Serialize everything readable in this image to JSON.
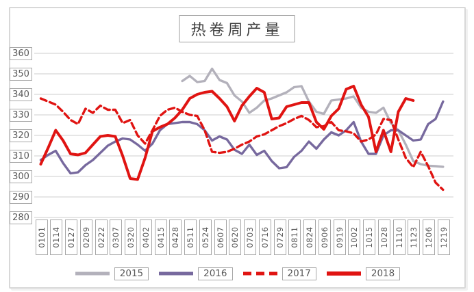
{
  "chart_data": {
    "type": "line",
    "title": "热卷周产量",
    "grid": true,
    "legend_position": "bottom",
    "y_axis": {
      "min": 280,
      "max": 360,
      "step": 10,
      "tick_labels": [
        "360",
        "350",
        "340",
        "330",
        "320",
        "310",
        "300",
        "290",
        "280"
      ]
    },
    "x_axis": {
      "points_per_label": 2,
      "tick_labels": [
        "0101",
        "0114",
        "0127",
        "0209",
        "0222",
        "0307",
        "0320",
        "0402",
        "0415",
        "0428",
        "0511",
        "0524",
        "0607",
        "0620",
        "0703",
        "0716",
        "0729",
        "0811",
        "0824",
        "0906",
        "0919",
        "1002",
        "1015",
        "1028",
        "1110",
        "1123",
        "1206",
        "1219"
      ]
    },
    "series": [
      {
        "name": "2015",
        "color": "#b3b1bb",
        "style": "solid",
        "start_index": 19,
        "values": [
          346.5,
          349,
          346,
          346.5,
          352.5,
          347,
          345.5,
          339.5,
          336.5,
          331,
          333.5,
          337,
          338,
          339.5,
          341,
          343.5,
          344,
          336.5,
          331.5,
          330.5,
          337,
          337.5,
          338,
          339,
          333.5,
          331.5,
          331,
          333.5,
          326,
          322.5,
          315.5,
          307.5,
          306,
          305.2,
          305,
          304.7
        ]
      },
      {
        "name": "2016",
        "color": "#77699e",
        "style": "solid",
        "start_index": 0,
        "values": [
          308,
          310.5,
          312.5,
          306.5,
          301.5,
          302,
          305.5,
          308,
          311.5,
          315,
          317,
          318.5,
          318,
          315.5,
          312.5,
          316,
          322.5,
          325.5,
          326,
          326.5,
          326.5,
          325.5,
          322.5,
          317.5,
          319.5,
          318,
          313,
          311,
          315.5,
          310.5,
          312.5,
          307.5,
          304,
          304.5,
          309.5,
          312.5,
          317,
          313.5,
          318,
          321.5,
          320,
          322.5,
          326.5,
          317,
          311,
          311,
          320,
          322.5,
          322.5,
          320,
          317.5,
          318,
          325.5,
          328,
          336.5
        ]
      },
      {
        "name": "2017",
        "color": "#e01412",
        "style": "dashed",
        "start_index": 0,
        "values": [
          338,
          336.5,
          335,
          331.5,
          327.5,
          325.5,
          333,
          331,
          334.5,
          332.5,
          332.5,
          326,
          327.5,
          320,
          316,
          322.5,
          329.5,
          332.5,
          333.5,
          331.5,
          330,
          329.5,
          322.5,
          312,
          311.5,
          312,
          313.5,
          315.5,
          317,
          319.5,
          320.5,
          322.5,
          324.5,
          326,
          328,
          329.5,
          327.5,
          324,
          324.5,
          326.5,
          322.5,
          322,
          321,
          317,
          318,
          320.5,
          328,
          327.5,
          318,
          309,
          304.5,
          312,
          305,
          297,
          293.5
        ]
      },
      {
        "name": "2018",
        "color": "#e01412",
        "style": "solid",
        "start_index": 0,
        "values": [
          306,
          314,
          322.5,
          317.5,
          311,
          310.5,
          311.5,
          315.5,
          319.5,
          320,
          319.5,
          310,
          299,
          298.5,
          309,
          322,
          324,
          325.5,
          328.5,
          332.5,
          338,
          340,
          341,
          341.5,
          338,
          334,
          327,
          334.5,
          339,
          343,
          341,
          328,
          328.5,
          334,
          335,
          336,
          336,
          326.5,
          323,
          329.5,
          333,
          342.5,
          344,
          335,
          329,
          312,
          322.5,
          312,
          331.5,
          338,
          337
        ]
      }
    ]
  }
}
